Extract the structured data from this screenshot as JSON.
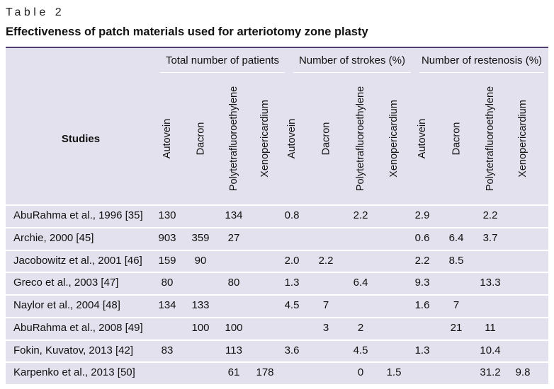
{
  "table_label": "Table 2",
  "table_title": "Effectiveness of patch materials used for arteriotomy zone plasty",
  "studies_header": "Studies",
  "groups": [
    {
      "label": "Total number of patients"
    },
    {
      "label": "Number of strokes (%)"
    },
    {
      "label": "Number of restenosis (%)"
    }
  ],
  "subheaders": [
    "Autovein",
    "Dacron",
    "Polytetrafluoroethylene",
    "Xenopericardium"
  ],
  "rows": [
    {
      "study": "AbuRahma et al., 1996 [35]",
      "values": [
        "130",
        "",
        "134",
        "",
        "0.8",
        "",
        "2.2",
        "",
        "2.9",
        "",
        "2.2",
        ""
      ]
    },
    {
      "study": "Archie, 2000 [45]",
      "values": [
        "903",
        "359",
        "27",
        "",
        "",
        "",
        "",
        "",
        "0.6",
        "6.4",
        "3.7",
        ""
      ]
    },
    {
      "study": "Jacobowitz et al., 2001 [46]",
      "values": [
        "159",
        "90",
        "",
        "",
        "2.0",
        "2.2",
        "",
        "",
        "2.2",
        "8.5",
        "",
        ""
      ]
    },
    {
      "study": "Greco et al., 2003 [47]",
      "values": [
        "80",
        "",
        "80",
        "",
        "1.3",
        "",
        "6.4",
        "",
        "9.3",
        "",
        "13.3",
        ""
      ]
    },
    {
      "study": "Naylor et al., 2004 [48]",
      "values": [
        "134",
        "133",
        "",
        "",
        "4.5",
        "7",
        "",
        "",
        "1.6",
        "7",
        "",
        ""
      ]
    },
    {
      "study": "AbuRahma et al., 2008 [49]",
      "values": [
        "",
        "100",
        "100",
        "",
        "",
        "3",
        "2",
        "",
        "",
        "21",
        "11",
        ""
      ]
    },
    {
      "study": "Fokin, Kuvatov, 2013 [42]",
      "values": [
        "83",
        "",
        "113",
        "",
        "3.6",
        "",
        "4.5",
        "",
        "1.3",
        "",
        "10.4",
        ""
      ]
    },
    {
      "study": "Karpenko et al., 2013 [50]",
      "values": [
        "",
        "",
        "61",
        "178",
        "",
        "",
        "0",
        "1.5",
        "",
        "",
        "31.2",
        "9.8"
      ]
    }
  ]
}
